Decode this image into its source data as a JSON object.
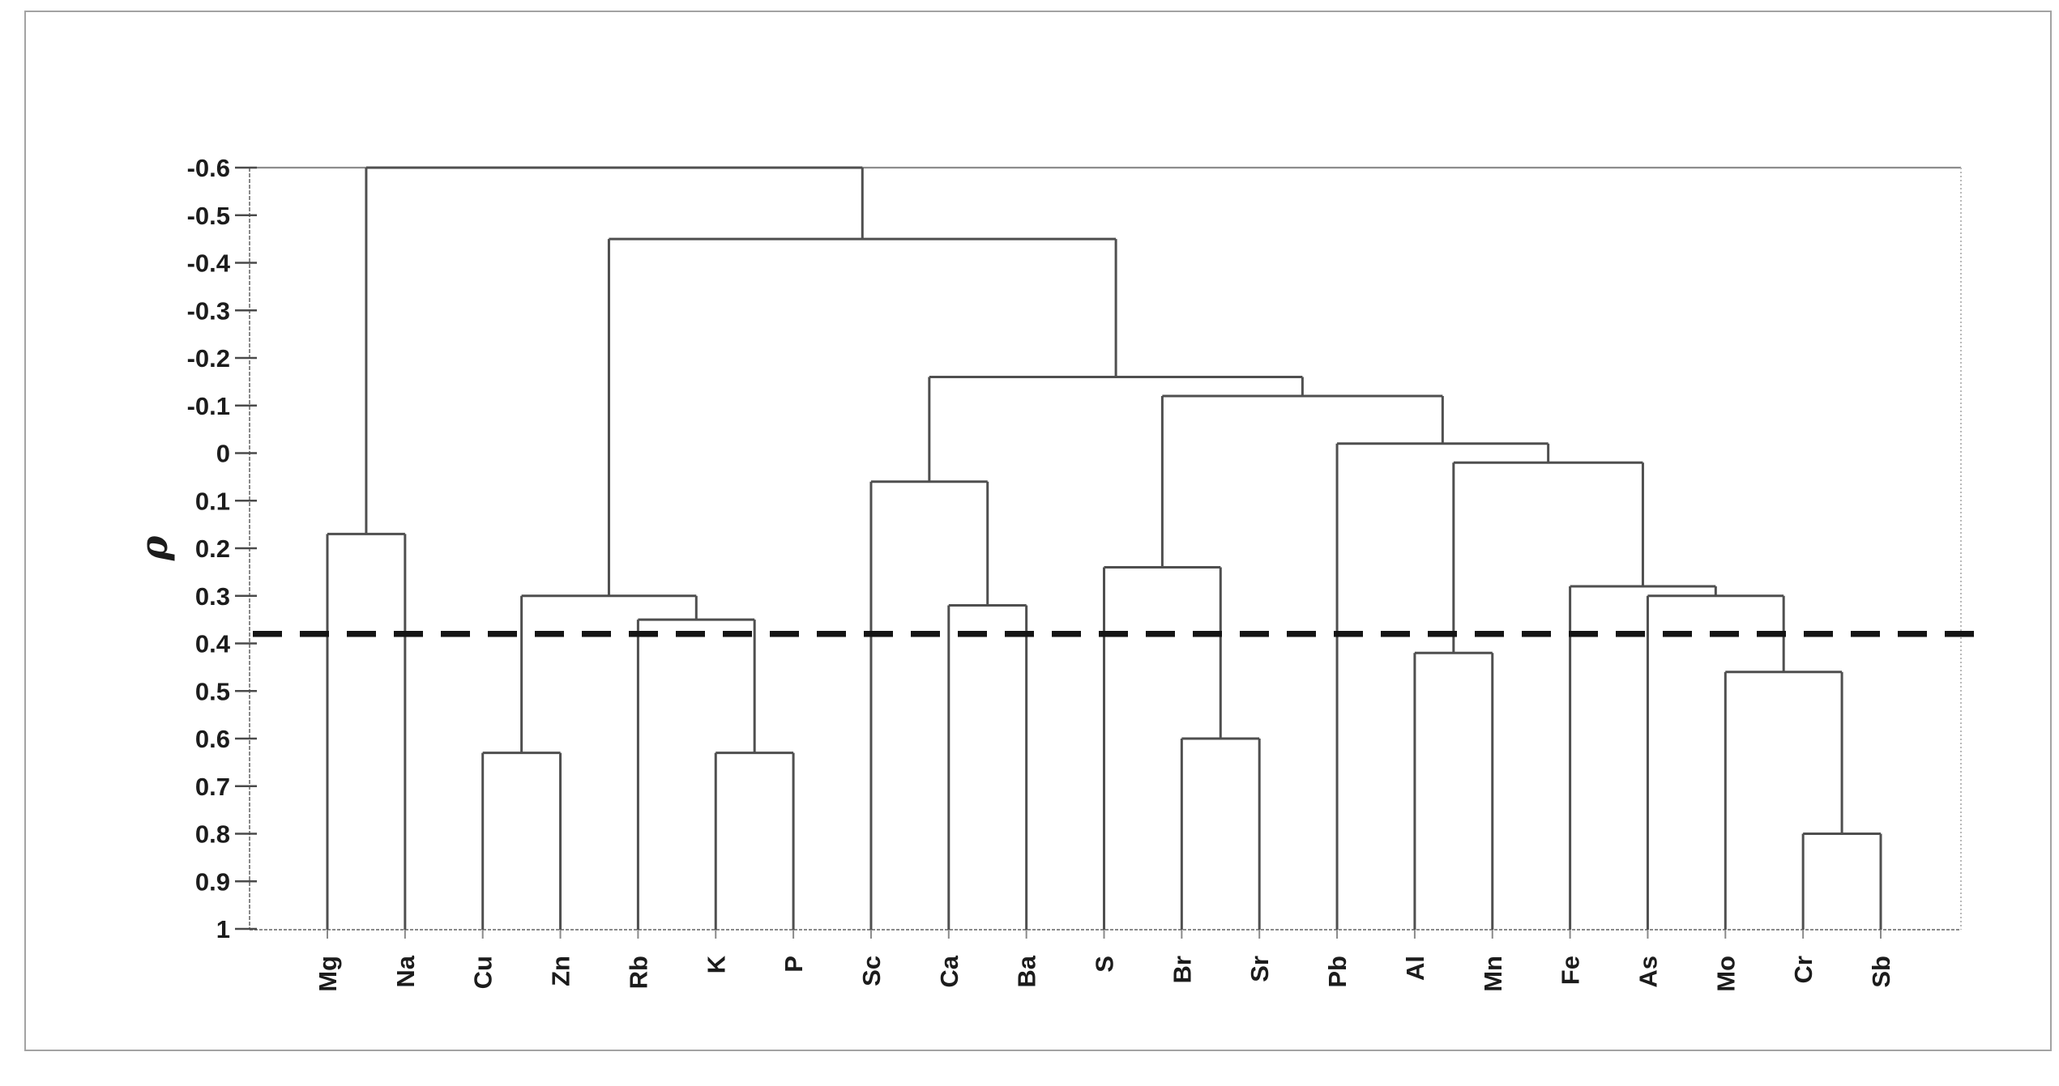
{
  "figure": {
    "background": "#ffffff",
    "outer_border_color": "#a3a3a3"
  },
  "axis": {
    "label": "ρ",
    "orientation": "values increase downward",
    "min": -0.6,
    "max": 1,
    "tick_labels": [
      "-0.6",
      "-0.5",
      "-0.4",
      "-0.3",
      "-0.2",
      "-0.1",
      "0",
      "0.1",
      "0.2",
      "0.3",
      "0.4",
      "0.5",
      "0.6",
      "0.7",
      "0.8",
      "0.9",
      "1"
    ],
    "tick_values": [
      -0.6,
      -0.5,
      -0.4,
      -0.3,
      -0.2,
      -0.1,
      0,
      0.1,
      0.2,
      0.3,
      0.4,
      0.5,
      0.6,
      0.7,
      0.8,
      0.9,
      1
    ],
    "line_color": "#8a8a8a",
    "tick_color": "#4a4a4a",
    "text_color": "#1c1c1c"
  },
  "threshold": {
    "rho": 0.38,
    "style": "bold dashed horizontal line",
    "color": "#141414"
  },
  "chart_data": {
    "type": "dendrogram",
    "ylabel": "ρ",
    "ylim": [
      -0.6,
      1
    ],
    "grid": "off",
    "threshold_rho": 0.38,
    "line_color": "#4f4f4f",
    "leaves": [
      "Mg",
      "Na",
      "Cu",
      "Zn",
      "Rb",
      "K",
      "P",
      "Sc",
      "Ca",
      "Ba",
      "S",
      "Br",
      "Sr",
      "Pb",
      "Al",
      "Mn",
      "Fe",
      "As",
      "Mo",
      "Cr",
      "Sb"
    ],
    "merges": [
      {
        "id": "MgNa",
        "children": [
          "Mg",
          "Na"
        ],
        "rho": 0.17
      },
      {
        "id": "CuZn",
        "children": [
          "Cu",
          "Zn"
        ],
        "rho": 0.63
      },
      {
        "id": "KP",
        "children": [
          "K",
          "P"
        ],
        "rho": 0.63
      },
      {
        "id": "RbKP",
        "children": [
          "Rb",
          "KP"
        ],
        "rho": 0.35
      },
      {
        "id": "CuZnRbKP",
        "children": [
          "CuZn",
          "RbKP"
        ],
        "rho": 0.3
      },
      {
        "id": "CaBa",
        "children": [
          "Ca",
          "Ba"
        ],
        "rho": 0.32
      },
      {
        "id": "ScCaBa",
        "children": [
          "Sc",
          "CaBa"
        ],
        "rho": 0.06
      },
      {
        "id": "BrSr",
        "children": [
          "Br",
          "Sr"
        ],
        "rho": 0.6
      },
      {
        "id": "SBrSr",
        "children": [
          "S",
          "BrSr"
        ],
        "rho": 0.24
      },
      {
        "id": "AlMn",
        "children": [
          "Al",
          "Mn"
        ],
        "rho": 0.42
      },
      {
        "id": "CrSb",
        "children": [
          "Cr",
          "Sb"
        ],
        "rho": 0.8
      },
      {
        "id": "MoCrSb",
        "children": [
          "Mo",
          "CrSb"
        ],
        "rho": 0.46
      },
      {
        "id": "AsMoCrSb",
        "children": [
          "As",
          "MoCrSb"
        ],
        "rho": 0.3
      },
      {
        "id": "FeAsMoCrSb",
        "children": [
          "Fe",
          "AsMoCrSb"
        ],
        "rho": 0.28
      },
      {
        "id": "AlMnFeAsMoCrSb",
        "children": [
          "AlMn",
          "FeAsMoCrSb"
        ],
        "rho": 0.02
      },
      {
        "id": "PbAlMnFeAsMoCrSb",
        "children": [
          "Pb",
          "AlMnFeAsMoCrSb"
        ],
        "rho": -0.02
      },
      {
        "id": "SBrSrPbCluster",
        "children": [
          "SBrSr",
          "PbAlMnFeAsMoCrSb"
        ],
        "rho": -0.12
      },
      {
        "id": "ScToSb",
        "children": [
          "ScCaBa",
          "SBrSrPbCluster"
        ],
        "rho": -0.16
      },
      {
        "id": "CuToSb",
        "children": [
          "CuZnRbKP",
          "ScToSb"
        ],
        "rho": -0.45
      },
      {
        "id": "root",
        "children": [
          "MgNa",
          "CuToSb"
        ],
        "rho": -0.6
      }
    ]
  }
}
